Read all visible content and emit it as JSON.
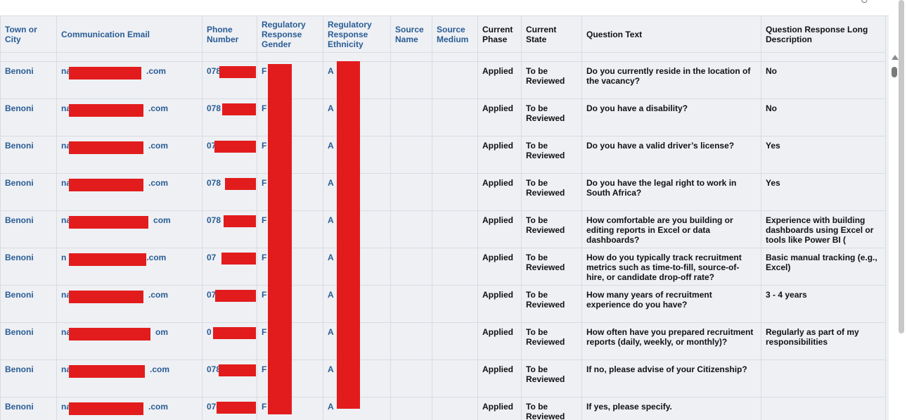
{
  "top_glyph": "↻",
  "headers": {
    "town": "Town or\nCity",
    "email": "Communication Email",
    "phone": "Phone\nNumber",
    "gender": "Regulatory\nResponse\nGender",
    "ethnicity": "Regulatory\nResponse\nEthnicity",
    "source_name": "Source\nName",
    "source_medium": "Source\nMedium",
    "phase": "Current\nPhase",
    "state": "Current\nState",
    "question": "Question Text",
    "response": "Question Response Long\nDescription"
  },
  "rows": [
    {
      "town": "Benoni",
      "email_prefix": "na",
      "email_suffix": ".com",
      "phone": "078",
      "gender": "F",
      "ethnicity": "A",
      "phase": "Applied",
      "state": "To be\nReviewed",
      "question": "Do you currently reside in the location of the vacancy?",
      "response": "No"
    },
    {
      "town": "Benoni",
      "email_prefix": "na",
      "email_suffix": ".com",
      "phone": "078",
      "gender": "F",
      "ethnicity": "A",
      "phase": "Applied",
      "state": "To be\nReviewed",
      "question": "Do you have a disability?",
      "response": "No"
    },
    {
      "town": "Benoni",
      "email_prefix": "na",
      "email_suffix": ".com",
      "phone": "07",
      "gender": "F",
      "ethnicity": "A",
      "phase": "Applied",
      "state": "To be\nReviewed",
      "question": "Do you have a valid driver’s license?",
      "response": "Yes"
    },
    {
      "town": "Benoni",
      "email_prefix": "na",
      "email_suffix": ".com",
      "phone": "078",
      "gender": "F",
      "ethnicity": "A",
      "phase": "Applied",
      "state": "To be\nReviewed",
      "question": "Do you have the legal right to work in South Africa?",
      "response": "Yes"
    },
    {
      "town": "Benoni",
      "email_prefix": "na",
      "email_suffix": "com",
      "phone": "078",
      "gender": "F",
      "ethnicity": "A",
      "phase": "Applied",
      "state": "To be\nReviewed",
      "question": "How comfortable are you building or editing reports in Excel or data dashboards?",
      "response": "Experience with building dashboards using Excel or tools like Power BI ("
    },
    {
      "town": "Benoni",
      "email_prefix": "n",
      "email_suffix": ".com",
      "phone": "07",
      "gender": "F",
      "ethnicity": "A",
      "phase": "Applied",
      "state": "To be\nReviewed",
      "question": "How do you typically track recruitment metrics such as time-to-fill, source-of-hire, or candidate drop-off rate?",
      "response": "Basic manual tracking (e.g., Excel)"
    },
    {
      "town": "Benoni",
      "email_prefix": "na",
      "email_suffix": ".com",
      "phone": "07",
      "gender": "F",
      "ethnicity": "A",
      "phase": "Applied",
      "state": "To be\nReviewed",
      "question": "How many years of recruitment experience do you have?",
      "response": "3 - 4 years"
    },
    {
      "town": "Benoni",
      "email_prefix": "na",
      "email_suffix": "om",
      "phone": "0",
      "gender": "F",
      "ethnicity": "A",
      "phase": "Applied",
      "state": "To be\nReviewed",
      "question": "How often have you prepared recruitment reports (daily, weekly, or monthly)?",
      "response": "Regularly as part of my responsibilities"
    },
    {
      "town": "Benoni",
      "email_prefix": "na",
      "email_suffix": ".com",
      "phone": "078",
      "gender": "F",
      "ethnicity": "A",
      "phase": "Applied",
      "state": "To be\nReviewed",
      "question": "If no, please advise of your Citizenship?",
      "response": ""
    },
    {
      "town": "Benoni",
      "email_prefix": "na",
      "email_suffix": ".com",
      "phone": "078",
      "gender": "F",
      "ethnicity": "A",
      "phase": "Applied",
      "state": "To be\nReviewed",
      "question": "If yes, please specify.",
      "response": ""
    }
  ]
}
